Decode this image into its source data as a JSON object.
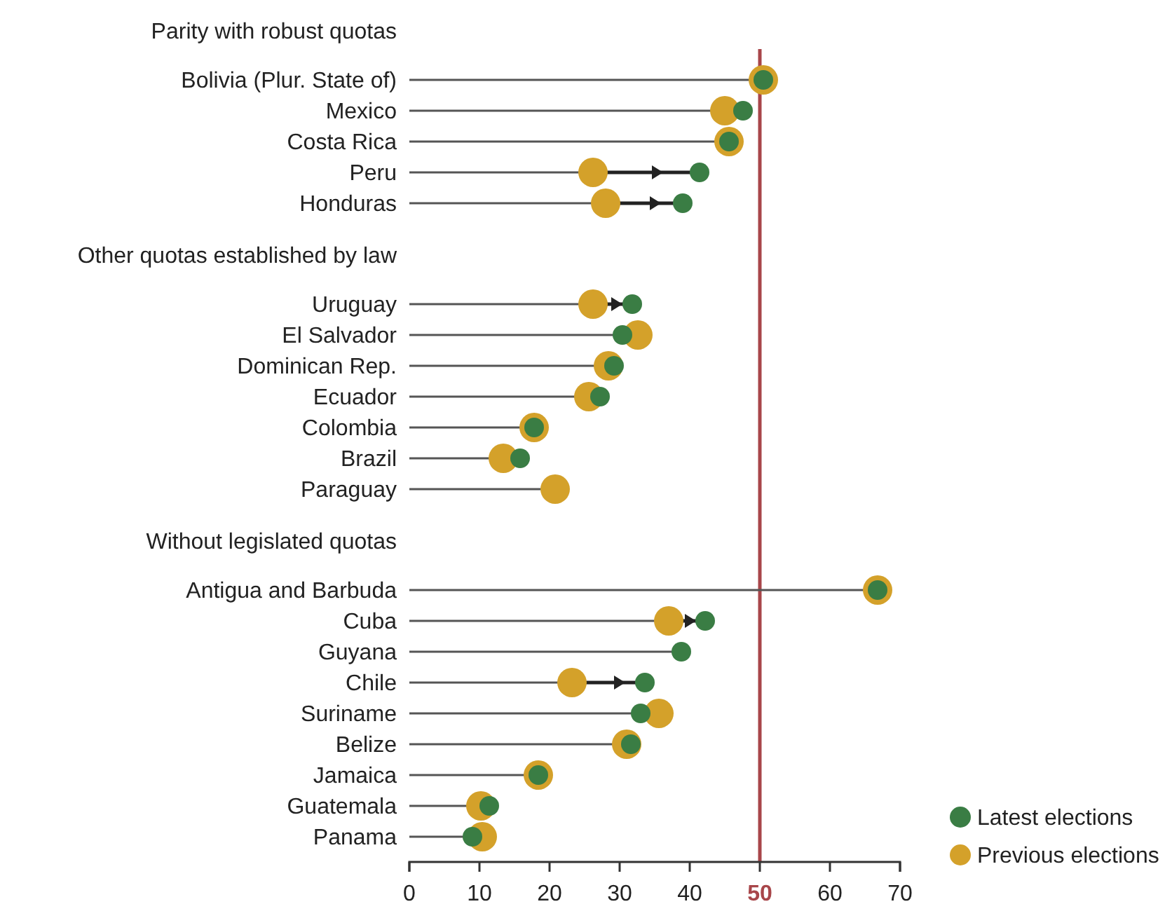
{
  "chart_data": {
    "type": "lollipop",
    "orientation": "horizontal",
    "marker": "circle",
    "legend": "bottom right",
    "categories": [
      "Parity with robust quotas",
      "Bolivia (Plur. State of)",
      "Mexico",
      "Costa Rica",
      "Peru",
      "Honduras",
      "Other quotas established by law",
      "Uruguay",
      "El Salvador",
      "Dominican Rep.",
      "Ecuador",
      "Colombia",
      "Brazil",
      "Paraguay",
      "Without legislated quotas",
      "Antigua and Barbuda",
      "Cuba",
      "Guyana",
      "Chile",
      "Suriname",
      "Belize",
      "Jamaica",
      "Guatemala",
      "Panama"
    ],
    "series": [
      {
        "name": "Latest elections",
        "color": "#3a7d44",
        "values": [
          null,
          50.5,
          47.6,
          45.6,
          41.4,
          39,
          null,
          31.8,
          30.4,
          29.2,
          27.2,
          17.8,
          15.8,
          null,
          null,
          66.8,
          42.2,
          38.8,
          33.6,
          33,
          31.6,
          18.4,
          11.4,
          9
        ]
      },
      {
        "name": "Previous elections",
        "color": "#d4a12a",
        "values": [
          null,
          50.5,
          45,
          45.6,
          26.2,
          28,
          null,
          26.2,
          32.6,
          28.4,
          25.6,
          17.8,
          13.4,
          20.8,
          null,
          66.8,
          37,
          null,
          23.2,
          35.6,
          31,
          18.4,
          10.2,
          10.4
        ]
      }
    ],
    "xlim": [
      0,
      70
    ],
    "xticks": [
      0,
      10,
      20,
      30,
      40,
      50,
      60,
      70
    ],
    "ref_lines": [
      {
        "axis": "x",
        "value": 50,
        "color": "#a8464a"
      }
    ]
  }
}
